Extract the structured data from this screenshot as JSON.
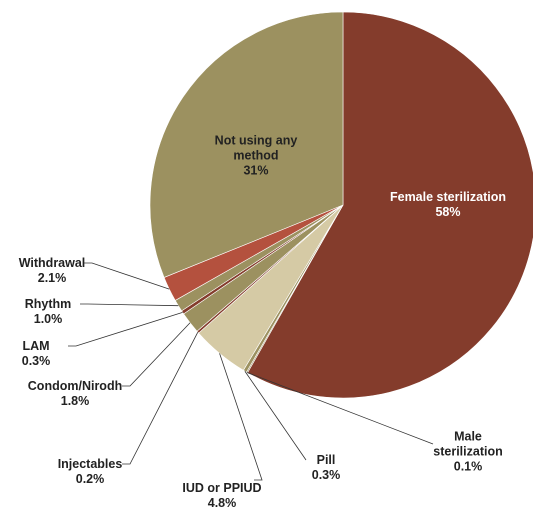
{
  "chart_data": {
    "type": "pie",
    "categories": [
      "Female sterilization",
      "Male sterilization",
      "Pill",
      "IUD or PPIUD",
      "Injectables",
      "Condom/Nirodh",
      "LAM",
      "Rhythm",
      "Withdrawal",
      "Not using any method"
    ],
    "values": [
      58,
      0.1,
      0.3,
      4.8,
      0.2,
      1.8,
      0.3,
      1.0,
      2.1,
      31
    ],
    "value_labels": [
      "58%",
      "0.1%",
      "0.3%",
      "4.8%",
      "0.2%",
      "1.8%",
      "0.3%",
      "1.0%",
      "2.1%",
      "31%"
    ],
    "colors": [
      "#843c2c",
      "#9c9160",
      "#9c9160",
      "#d5caa5",
      "#843c2c",
      "#9c9160",
      "#843c2c",
      "#9c9160",
      "#b4513e",
      "#9c9160"
    ]
  }
}
